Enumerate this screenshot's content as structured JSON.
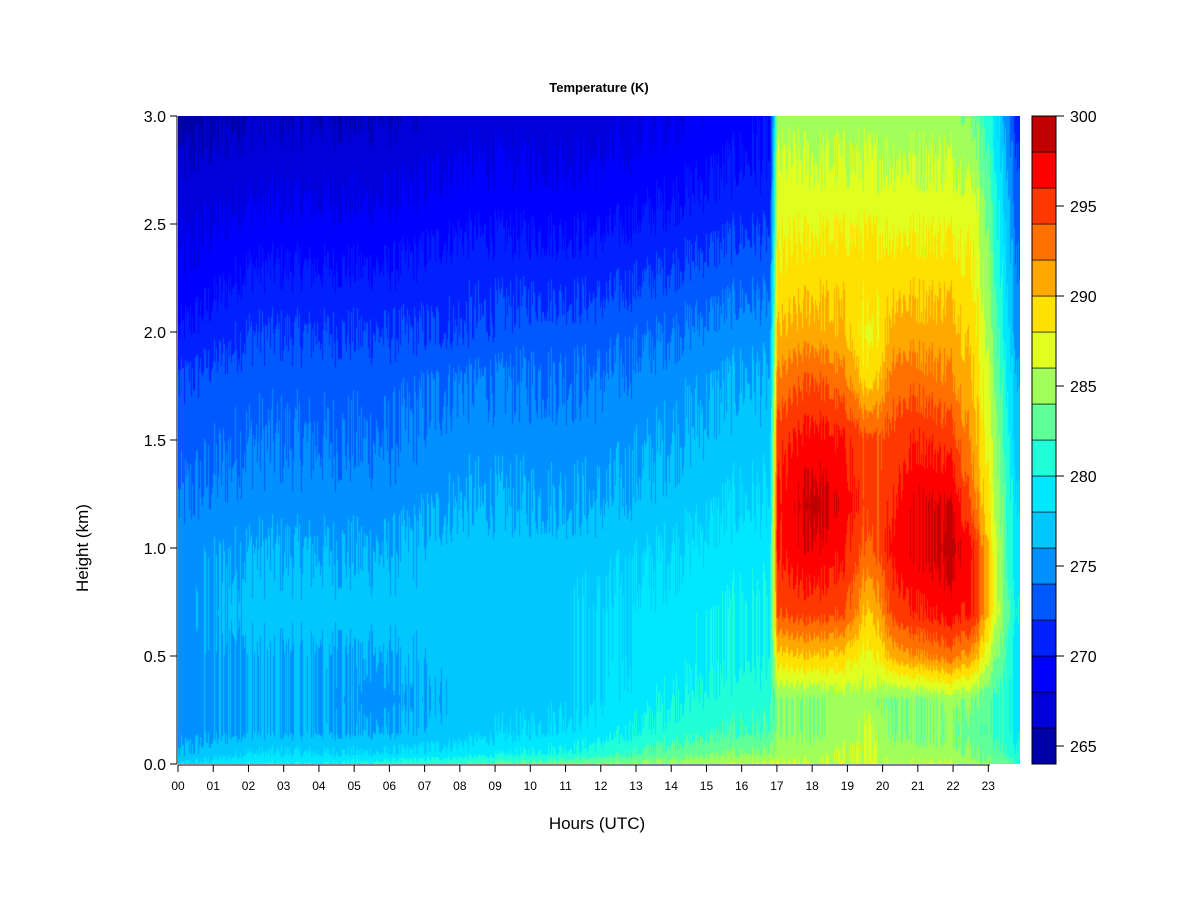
{
  "chart_data": {
    "type": "heatmap",
    "title": "Temperature (K)",
    "xlabel": "Hours (UTC)",
    "ylabel": "Height (km)",
    "x_ticks": [
      "00",
      "01",
      "02",
      "03",
      "04",
      "05",
      "06",
      "07",
      "08",
      "09",
      "10",
      "11",
      "12",
      "13",
      "14",
      "15",
      "16",
      "17",
      "18",
      "19",
      "20",
      "21",
      "22",
      "23"
    ],
    "y_ticks": [
      "0.0",
      "0.5",
      "1.0",
      "1.5",
      "2.0",
      "2.5",
      "3.0"
    ],
    "xlim": [
      0,
      23.9
    ],
    "ylim": [
      0,
      3.0
    ],
    "colorbar": {
      "ticks": [
        "265",
        "270",
        "275",
        "280",
        "285",
        "290",
        "295",
        "300"
      ],
      "range": [
        264,
        300
      ],
      "levels": [
        264,
        266,
        268,
        270,
        272,
        274,
        276,
        278,
        280,
        282,
        284,
        286,
        288,
        290,
        292,
        294,
        296,
        298,
        300
      ],
      "colors": [
        "#00006e",
        "#0000a8",
        "#0000d8",
        "#0000ff",
        "#0020ff",
        "#0058ff",
        "#0090ff",
        "#00c8ff",
        "#00e8ff",
        "#20ffd8",
        "#60ff98",
        "#a0ff58",
        "#e0ff20",
        "#ffe000",
        "#ffa800",
        "#ff7000",
        "#ff3800",
        "#ff0000",
        "#c00000",
        "#800000"
      ]
    },
    "field": {
      "x": [
        0,
        2,
        4,
        6,
        8,
        10,
        12,
        14,
        16,
        16.8,
        17.0,
        18,
        19,
        19.6,
        20.3,
        21,
        22,
        22.6,
        23.1,
        23.5,
        23.9
      ],
      "y": [
        0.0,
        0.05,
        0.15,
        0.3,
        0.5,
        0.7,
        1.0,
        1.2,
        1.5,
        1.8,
        2.0,
        2.3,
        2.6,
        2.8,
        3.0
      ],
      "z": [
        [
          278,
          280,
          280,
          281,
          282,
          283,
          284,
          285,
          286,
          286,
          286,
          286,
          286,
          286,
          286,
          286,
          286,
          285,
          284,
          283,
          281
        ],
        [
          276,
          278,
          278,
          278,
          279,
          280,
          281,
          283,
          284,
          284,
          285,
          285,
          286,
          286,
          285,
          285,
          285,
          284,
          283,
          282,
          280
        ],
        [
          275,
          276,
          276,
          276,
          277,
          278,
          279,
          281,
          282,
          282,
          284,
          284,
          285,
          286,
          284,
          284,
          284,
          283,
          282,
          281,
          279
        ],
        [
          275,
          276,
          276,
          275,
          277,
          277,
          278,
          280,
          281,
          281,
          284,
          284,
          285,
          285,
          284,
          284,
          285,
          284,
          282,
          281,
          278
        ],
        [
          275,
          276,
          276,
          276,
          277,
          277,
          278,
          279,
          280,
          280,
          289,
          290,
          289,
          287,
          291,
          292,
          293,
          291,
          285,
          282,
          278
        ],
        [
          275,
          277,
          277,
          277,
          277,
          277,
          278,
          279,
          280,
          280,
          294,
          295,
          294,
          289,
          295,
          296,
          297,
          296,
          288,
          283,
          279
        ],
        [
          275,
          276,
          276,
          276,
          277,
          277,
          277,
          278,
          279,
          279,
          296,
          298,
          296,
          293,
          297,
          298,
          299,
          296,
          288,
          282,
          278
        ],
        [
          274,
          275,
          275,
          275,
          276,
          276,
          276,
          277,
          278,
          278,
          296,
          299,
          297,
          294,
          296,
          298,
          298,
          293,
          287,
          282,
          277
        ],
        [
          273,
          274,
          274,
          274,
          275,
          275,
          275,
          276,
          277,
          277,
          295,
          297,
          296,
          294,
          295,
          296,
          295,
          291,
          286,
          281,
          276
        ],
        [
          272,
          273,
          273,
          273,
          274,
          274,
          274,
          275,
          276,
          276,
          292,
          294,
          292,
          288,
          293,
          293,
          292,
          290,
          285,
          280,
          275
        ],
        [
          270,
          272,
          272,
          272,
          272,
          273,
          273,
          274,
          275,
          275,
          290,
          291,
          290,
          287,
          291,
          291,
          291,
          289,
          284,
          279,
          274
        ],
        [
          268,
          270,
          270,
          270,
          271,
          271,
          271,
          272,
          273,
          273,
          288,
          289,
          289,
          289,
          289,
          289,
          289,
          288,
          283,
          278,
          273
        ],
        [
          267,
          268,
          268,
          268,
          269,
          269,
          269,
          270,
          271,
          271,
          287,
          287,
          287,
          287,
          287,
          287,
          287,
          287,
          282,
          277,
          272
        ],
        [
          266,
          267,
          267,
          267,
          268,
          268,
          268,
          269,
          270,
          270,
          286,
          286,
          286,
          286,
          286,
          286,
          286,
          285,
          281,
          276,
          271
        ],
        [
          265,
          266,
          266,
          266,
          267,
          267,
          267,
          268,
          269,
          270,
          285,
          285,
          285,
          285,
          285,
          285,
          285,
          284,
          280,
          275,
          270
        ]
      ]
    }
  }
}
